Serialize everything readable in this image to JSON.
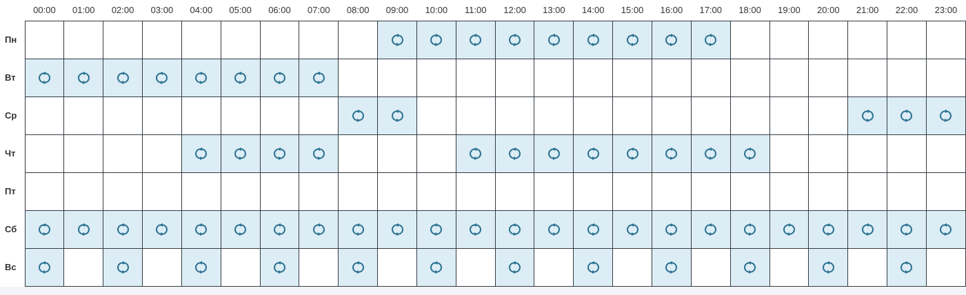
{
  "schedule": {
    "hours": [
      "00:00",
      "01:00",
      "02:00",
      "03:00",
      "04:00",
      "05:00",
      "06:00",
      "07:00",
      "08:00",
      "09:00",
      "10:00",
      "11:00",
      "12:00",
      "13:00",
      "14:00",
      "15:00",
      "16:00",
      "17:00",
      "18:00",
      "19:00",
      "20:00",
      "21:00",
      "22:00",
      "23:00"
    ],
    "days": [
      {
        "label": "Пн",
        "active_hours": [
          9,
          10,
          11,
          12,
          13,
          14,
          15,
          16,
          17
        ]
      },
      {
        "label": "Вт",
        "active_hours": [
          0,
          1,
          2,
          3,
          4,
          5,
          6,
          7
        ]
      },
      {
        "label": "Ср",
        "active_hours": [
          8,
          9,
          21,
          22,
          23
        ]
      },
      {
        "label": "Чт",
        "active_hours": [
          4,
          5,
          6,
          7,
          11,
          12,
          13,
          14,
          15,
          16,
          17,
          18
        ]
      },
      {
        "label": "Пт",
        "active_hours": []
      },
      {
        "label": "Сб",
        "active_hours": [
          0,
          1,
          2,
          3,
          4,
          5,
          6,
          7,
          8,
          9,
          10,
          11,
          12,
          13,
          14,
          15,
          16,
          17,
          18,
          19,
          20,
          21,
          22,
          23
        ]
      },
      {
        "label": "Вс",
        "active_hours": [
          0,
          2,
          4,
          6,
          8,
          10,
          12,
          14,
          16,
          18,
          20,
          22
        ]
      }
    ],
    "active_cell_icon": "sync-icon"
  },
  "colors": {
    "icon": "#2b7191",
    "active_cell_bg": "#dcedf5",
    "grid_border": "#333a41"
  }
}
